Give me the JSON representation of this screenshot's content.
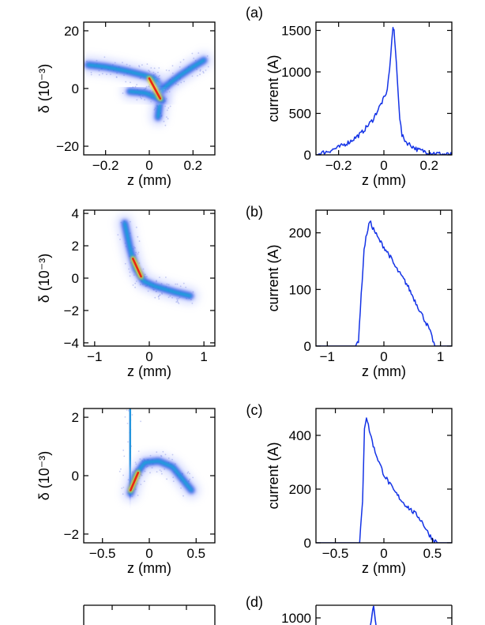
{
  "chart_data": [
    {
      "panel": "a",
      "type": "heatmap",
      "label": "(a)",
      "xlabel": "z (mm)",
      "ylabel": "δ (10⁻³)",
      "xlim": [
        -0.3,
        0.3
      ],
      "ylim": [
        -23,
        23
      ],
      "xticks": [
        -0.2,
        0,
        0.2
      ],
      "xtick_labels": [
        "−0.2",
        "0",
        "0.2"
      ],
      "yticks": [
        -20,
        0,
        20
      ],
      "ytick_labels": [
        "−20",
        "0",
        "20"
      ],
      "branches": [
        {
          "name": "left-arm",
          "points": [
            [
              -0.28,
              8.2
            ],
            [
              -0.2,
              7.5
            ],
            [
              -0.1,
              6.0
            ],
            [
              -0.02,
              4.5
            ],
            [
              0.02,
              3.5
            ],
            [
              0.05,
              1.0
            ],
            [
              0.05,
              -4.0
            ],
            [
              0.04,
              -10.0
            ]
          ]
        },
        {
          "name": "right-arm",
          "points": [
            [
              0.04,
              -2.0
            ],
            [
              0.08,
              1.0
            ],
            [
              0.14,
              4.5
            ],
            [
              0.2,
              7.5
            ],
            [
              0.25,
              9.8
            ]
          ]
        },
        {
          "name": "lower-arm",
          "points": [
            [
              -0.09,
              -1.0
            ],
            [
              -0.02,
              -1.5
            ],
            [
              0.03,
              -3.0
            ],
            [
              0.06,
              -4.0
            ]
          ]
        }
      ],
      "core": [
        [
          0.0,
          3.5
        ],
        [
          0.05,
          -3.5
        ]
      ]
    },
    {
      "panel": "a",
      "type": "line",
      "xlabel": "z (mm)",
      "ylabel": "current (A)",
      "xlim": [
        -0.3,
        0.3
      ],
      "ylim": [
        0,
        1600
      ],
      "xticks": [
        -0.2,
        0,
        0.2
      ],
      "xtick_labels": [
        "−0.2",
        "0",
        "0.2"
      ],
      "yticks": [
        0,
        500,
        1000,
        1500
      ],
      "ytick_labels": [
        "0",
        "500",
        "1000",
        "1500"
      ],
      "series": [
        {
          "name": "current",
          "color": "#1433e6",
          "x": [
            -0.3,
            -0.28,
            -0.25,
            -0.2,
            -0.15,
            -0.1,
            -0.05,
            0,
            0.01,
            0.02,
            0.03,
            0.04,
            0.045,
            0.05,
            0.06,
            0.07,
            0.08,
            0.1,
            0.15,
            0.2,
            0.25,
            0.3
          ],
          "values": [
            0,
            20,
            40,
            90,
            160,
            260,
            420,
            680,
            720,
            900,
            1200,
            1540,
            1480,
            1300,
            900,
            450,
            230,
            150,
            60,
            30,
            10,
            0
          ]
        }
      ]
    },
    {
      "panel": "b",
      "type": "heatmap",
      "label": "(b)",
      "xlabel": "z (mm)",
      "ylabel": "δ (10⁻³)",
      "xlim": [
        -1.2,
        1.2
      ],
      "ylim": [
        -4.2,
        4.2
      ],
      "xticks": [
        -1,
        0,
        1
      ],
      "xtick_labels": [
        "−1",
        "0",
        "1"
      ],
      "yticks": [
        -4,
        -2,
        0,
        2,
        4
      ],
      "ytick_labels": [
        "−4",
        "−2",
        "0",
        "2",
        "4"
      ],
      "branches": [
        {
          "name": "main",
          "points": [
            [
              -0.45,
              3.4
            ],
            [
              -0.35,
              1.8
            ],
            [
              -0.25,
              0.6
            ],
            [
              -0.1,
              -0.2
            ],
            [
              0.1,
              -0.5
            ],
            [
              0.3,
              -0.7
            ],
            [
              0.5,
              -0.9
            ],
            [
              0.75,
              -1.1
            ]
          ]
        }
      ],
      "core": [
        [
          -0.3,
          1.2
        ],
        [
          -0.15,
          0.1
        ]
      ]
    },
    {
      "panel": "b",
      "type": "line",
      "xlabel": "z (mm)",
      "ylabel": "current (A)",
      "xlim": [
        -1.2,
        1.2
      ],
      "ylim": [
        0,
        240
      ],
      "xticks": [
        -1,
        0,
        1
      ],
      "xtick_labels": [
        "−1",
        "0",
        "1"
      ],
      "yticks": [
        0,
        100,
        200
      ],
      "ytick_labels": [
        "0",
        "100",
        "200"
      ],
      "series": [
        {
          "name": "current",
          "color": "#1433e6",
          "x": [
            -1.2,
            -0.5,
            -0.45,
            -0.4,
            -0.35,
            -0.3,
            -0.25,
            -0.2,
            -0.1,
            0,
            0.1,
            0.2,
            0.3,
            0.4,
            0.5,
            0.6,
            0.7,
            0.8,
            0.85,
            0.9,
            1.2
          ],
          "values": [
            0,
            0,
            10,
            90,
            170,
            200,
            220,
            210,
            190,
            175,
            160,
            140,
            125,
            110,
            90,
            70,
            50,
            30,
            15,
            0,
            0
          ]
        }
      ]
    },
    {
      "panel": "c",
      "type": "heatmap",
      "label": "(c)",
      "xlabel": "z (mm)",
      "ylabel": "δ (10⁻³)",
      "xlim": [
        -0.7,
        0.7
      ],
      "ylim": [
        -2.3,
        2.3
      ],
      "xticks": [
        -0.5,
        0,
        0.5
      ],
      "xtick_labels": [
        "−0.5",
        "0",
        "0.5"
      ],
      "yticks": [
        -2,
        0,
        2
      ],
      "ytick_labels": [
        "−2",
        "0",
        "2"
      ],
      "branches": [
        {
          "name": "spike",
          "points": [
            [
              -0.2,
              2.4
            ],
            [
              -0.2,
              1.0
            ],
            [
              -0.21,
              -0.6
            ]
          ]
        },
        {
          "name": "main",
          "points": [
            [
              -0.2,
              -0.6
            ],
            [
              -0.15,
              0.0
            ],
            [
              -0.05,
              0.45
            ],
            [
              0.1,
              0.5
            ],
            [
              0.25,
              0.3
            ],
            [
              0.35,
              -0.1
            ],
            [
              0.45,
              -0.5
            ]
          ]
        }
      ],
      "core": [
        [
          -0.2,
          -0.5
        ],
        [
          -0.12,
          0.1
        ]
      ]
    },
    {
      "panel": "c",
      "type": "line",
      "xlabel": "z (mm)",
      "ylabel": "current (A)",
      "xlim": [
        -0.7,
        0.7
      ],
      "ylim": [
        0,
        500
      ],
      "xticks": [
        -0.5,
        0,
        0.5
      ],
      "xtick_labels": [
        "−0.5",
        "0",
        "0.5"
      ],
      "yticks": [
        0,
        200,
        400
      ],
      "ytick_labels": [
        "0",
        "200",
        "400"
      ],
      "series": [
        {
          "name": "current",
          "color": "#1433e6",
          "x": [
            -0.7,
            -0.25,
            -0.22,
            -0.2,
            -0.18,
            -0.15,
            -0.1,
            -0.05,
            0,
            0.1,
            0.2,
            0.3,
            0.35,
            0.4,
            0.45,
            0.5,
            0.55,
            0.7
          ],
          "values": [
            0,
            0,
            150,
            430,
            470,
            420,
            350,
            300,
            255,
            195,
            150,
            115,
            100,
            75,
            40,
            15,
            0,
            0
          ]
        }
      ]
    },
    {
      "panel": "d",
      "type": "line",
      "label": "(d)",
      "ylabel": "",
      "ylim": [
        0,
        1250
      ],
      "yticks": [
        1000
      ],
      "ytick_labels": [
        "1000"
      ]
    }
  ]
}
